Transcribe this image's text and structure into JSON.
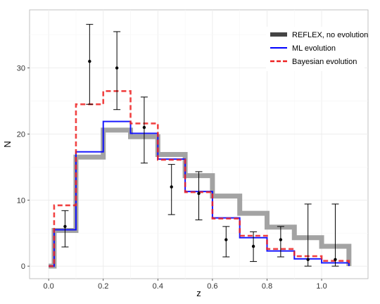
{
  "chart_data": {
    "type": "line",
    "xlabel": "z",
    "ylabel": "N",
    "xlim": [
      -0.07,
      1.17
    ],
    "ylim": [
      -1.9,
      38.8
    ],
    "x_ticks": [
      0.0,
      0.2,
      0.4,
      0.6,
      0.8,
      1.0
    ],
    "x_tick_labels": [
      "0.0",
      "0.2",
      "0.4",
      "0.6",
      "0.8",
      "1.0"
    ],
    "y_ticks": [
      0,
      10,
      20,
      30
    ],
    "y_tick_labels": [
      "0",
      "10",
      "20",
      "30"
    ],
    "grid": true,
    "legend_position": "top-right",
    "series": [
      {
        "name": "REFLEX, no evolution",
        "style": "step",
        "color": "#999999",
        "x": [
          0.0,
          0.02,
          0.1,
          0.2,
          0.3,
          0.4,
          0.5,
          0.6,
          0.7,
          0.8,
          0.9,
          1.0,
          1.1
        ],
        "y": [
          0.0,
          5.4,
          16.5,
          20.6,
          19.6,
          16.9,
          13.7,
          10.6,
          8.0,
          5.9,
          4.3,
          3.0,
          0.0
        ]
      },
      {
        "name": "ML evolution",
        "style": "step",
        "color": "#0000ff",
        "x": [
          0.0,
          0.02,
          0.1,
          0.2,
          0.3,
          0.4,
          0.5,
          0.6,
          0.7,
          0.8,
          0.9,
          1.0,
          1.1
        ],
        "y": [
          0.0,
          5.5,
          17.3,
          21.9,
          20.1,
          16.2,
          11.3,
          7.3,
          4.3,
          2.3,
          1.1,
          0.5,
          0.0
        ]
      },
      {
        "name": "Bayesian evolution",
        "style": "step-dashed",
        "color": "#ee2222",
        "x": [
          0.0,
          0.02,
          0.1,
          0.2,
          0.3,
          0.4,
          0.5,
          0.6,
          0.7,
          0.8,
          0.9,
          1.0,
          1.1
        ],
        "y": [
          0.0,
          9.2,
          24.5,
          26.5,
          21.6,
          16.1,
          11.2,
          7.2,
          4.6,
          2.6,
          1.5,
          0.8,
          0.0
        ]
      }
    ],
    "data_points": {
      "color": "#000000",
      "x": [
        0.06,
        0.15,
        0.25,
        0.35,
        0.45,
        0.55,
        0.65,
        0.75,
        0.85,
        0.95,
        1.05
      ],
      "y": [
        6,
        31,
        30,
        21,
        12,
        11,
        4,
        3,
        4,
        1,
        1
      ],
      "err_low": [
        2.9,
        24.5,
        23.7,
        15.6,
        7.8,
        7.0,
        1.4,
        0.7,
        1.4,
        0.0,
        0.0
      ],
      "err_high": [
        8.4,
        36.6,
        35.5,
        25.6,
        15.4,
        14.3,
        6.0,
        5.2,
        6.0,
        9.4,
        9.4
      ]
    }
  }
}
